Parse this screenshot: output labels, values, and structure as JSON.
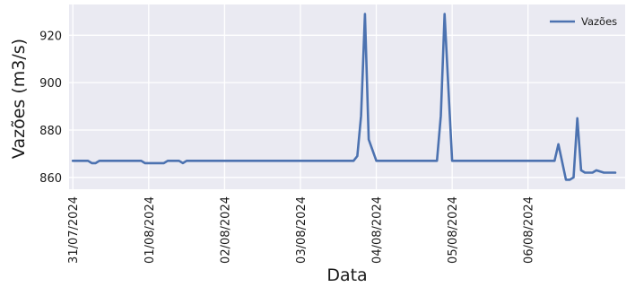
{
  "colors": {
    "plot_bg": "#eaeaf2",
    "grid": "#ffffff",
    "series": "#4c72b0"
  },
  "chart_data": {
    "type": "line",
    "title": "",
    "xlabel": "Data",
    "ylabel": "Vazões (m3/s)",
    "grid": true,
    "legend_position": "top-right",
    "x_ticks": [
      "31/07/2024",
      "01/08/2024",
      "02/08/2024",
      "03/08/2024",
      "04/08/2024",
      "05/08/2024",
      "06/08/2024"
    ],
    "y_ticks": [
      860,
      880,
      900,
      920
    ],
    "ylim": [
      855,
      933
    ],
    "xlim_days": [
      -0.05,
      7.28
    ],
    "series": [
      {
        "name": "Vazões",
        "x_days": [
          0.0,
          0.2,
          0.25,
          0.3,
          0.35,
          0.45,
          0.6,
          0.8,
          0.9,
          0.95,
          1.1,
          1.2,
          1.25,
          1.4,
          1.45,
          1.5,
          1.7,
          2.0,
          2.5,
          3.0,
          3.6,
          3.7,
          3.75,
          3.8,
          3.85,
          3.9,
          4.0,
          4.5,
          4.7,
          4.75,
          4.8,
          4.85,
          4.9,
          5.0,
          5.2,
          5.7,
          5.75,
          5.8,
          5.85,
          5.9,
          6.0,
          6.2,
          6.25,
          6.3,
          6.35,
          6.4,
          6.5,
          6.55,
          6.6,
          6.65,
          6.7,
          6.75,
          6.8,
          6.85,
          6.9,
          7.0,
          7.15
        ],
        "y": [
          867,
          867,
          866,
          866,
          867,
          867,
          867,
          867,
          867,
          866,
          866,
          866,
          867,
          867,
          866,
          867,
          867,
          867,
          867,
          867,
          867,
          867,
          869,
          886,
          929,
          876,
          867,
          867,
          867,
          867,
          867,
          886,
          929,
          867,
          867,
          867,
          867,
          867,
          867,
          867,
          867,
          867,
          867,
          867,
          867,
          874,
          859,
          859,
          860,
          885,
          863,
          862,
          862,
          862,
          863,
          862,
          862
        ]
      }
    ]
  }
}
